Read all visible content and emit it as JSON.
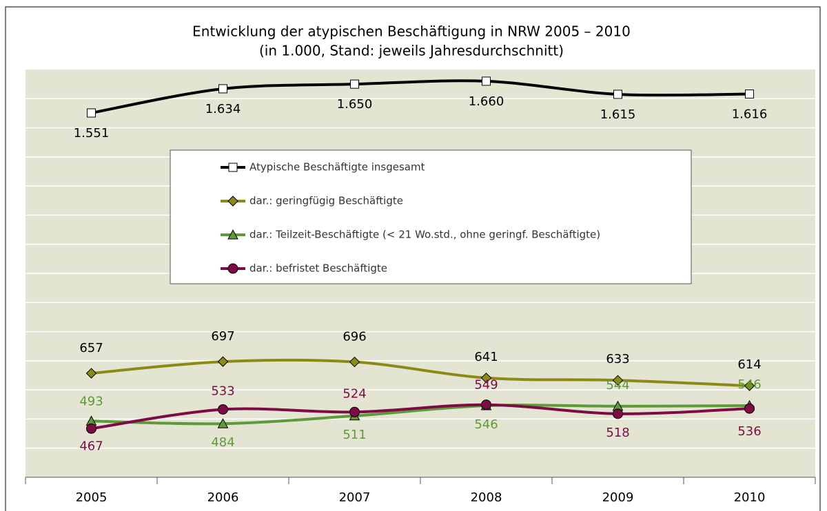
{
  "chart_data": {
    "type": "line",
    "title": "Entwicklung der atypischen Beschäftigung in NRW 2005 – 2010",
    "subtitle": "(in 1.000, Stand: jeweils Jahresdurchschnitt)",
    "categories": [
      "2005",
      "2006",
      "2007",
      "2008",
      "2009",
      "2010"
    ],
    "series": [
      {
        "name": "Atypische Beschäftigte insgesamt",
        "color": "#000000",
        "marker": "square",
        "label_color": "#000000",
        "values": [
          1551,
          1634,
          1650,
          1660,
          1615,
          1616
        ],
        "value_labels": [
          "1.551",
          "1.634",
          "1.650",
          "1.660",
          "1.615",
          "1.616"
        ]
      },
      {
        "name": "dar.: geringfügig Beschäftigte",
        "color": "#8c8a14",
        "marker": "diamond",
        "label_color": "#000000",
        "values": [
          657,
          697,
          696,
          641,
          633,
          614
        ]
      },
      {
        "name": "dar.: Teilzeit-Beschäftigte (< 21 Wo.std., ohne geringf. Beschäftigte)",
        "color": "#5e9a3a",
        "marker": "triangle",
        "label_color": "#5e9a3a",
        "values": [
          493,
          484,
          511,
          546,
          544,
          546
        ]
      },
      {
        "name": "dar.: befristet Beschäftigte",
        "color": "#7d0c46",
        "marker": "circle",
        "label_color": "#7d0c46",
        "values": [
          467,
          533,
          524,
          549,
          518,
          536
        ]
      }
    ],
    "ylim": [
      300,
      1700
    ],
    "yticks": [
      300,
      400,
      500,
      600,
      700,
      800,
      900,
      1000,
      1100,
      1200,
      1300,
      1400,
      1500,
      1600,
      1700
    ],
    "grid": true
  }
}
